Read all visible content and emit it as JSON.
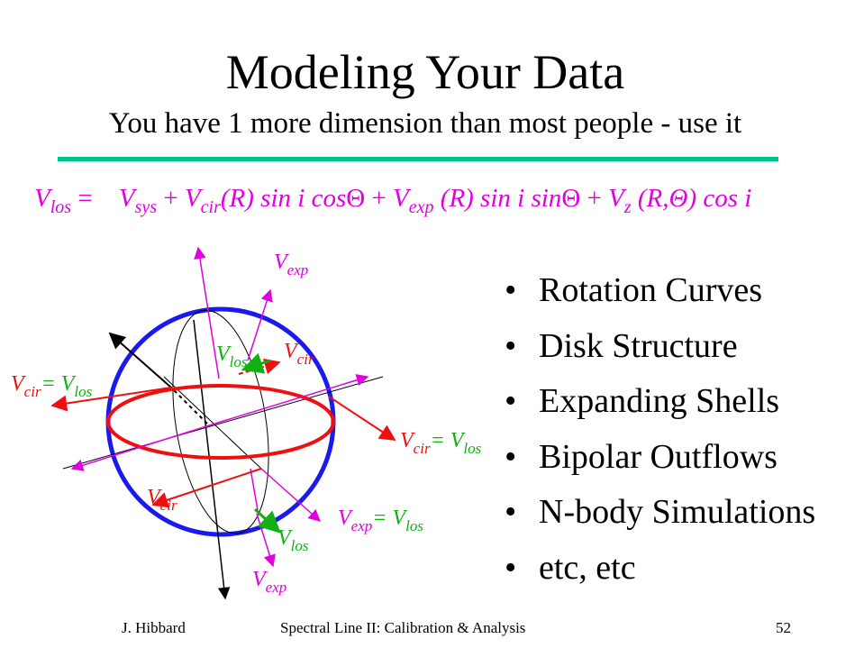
{
  "slide": {
    "title": "Modeling Your Data",
    "subtitle": "You have 1 more dimension than most people - use it"
  },
  "colors": {
    "rule": "#00c48c",
    "equation": "#e000e0",
    "sphere": "#1a1aee",
    "ring": "#ee1010",
    "vlos": "#10b010",
    "vexp": "#e000e0",
    "axis": "#000000"
  },
  "equation": {
    "lhs": "V",
    "lhs_sub": "los",
    "eq": "=",
    "t1": "V",
    "t1_sub": "sys",
    "plus1": "+",
    "t2": "V",
    "t2_sub": "cir",
    "t2_rest": "(R) sin i cos",
    "theta1": "Θ",
    "plus2": "+",
    "t3": "V",
    "t3_sub": "exp",
    "t3_rest": "(R) sin i sin",
    "theta2": "Θ",
    "plus3": "+",
    "t4": "V",
    "t4_sub": "z",
    "t4_rest": "(R,Θ) cos i"
  },
  "diagram_labels": {
    "vexp_top": "V",
    "vexp_top_sub": "exp",
    "vlos_top": "V",
    "vlos_top_sub": "los",
    "vcir_top": "V",
    "vcir_top_sub": "cir",
    "left_vcir": "V",
    "left_vcir_sub": "cir",
    "left_eq": "= V",
    "left_vlos_sub": "los",
    "right_vcir": "V",
    "right_vcir_sub": "cir",
    "right_eq": "= V",
    "right_vlos_sub": "los",
    "vcir_bottom": "V",
    "vcir_bottom_sub": "cir",
    "vexp_right": "V",
    "vexp_right_sub": "exp",
    "vexp_right_eq": "= V",
    "vexp_right_los_sub": "los",
    "vlos_bottom": "V",
    "vlos_bottom_sub": "los",
    "vexp_bottom": "V",
    "vexp_bottom_sub": "exp"
  },
  "bullets": {
    "marker": "•",
    "items": [
      "Rotation Curves",
      "Disk Structure",
      "Expanding Shells",
      "Bipolar Outflows",
      "N-body Simulations",
      "etc, etc"
    ]
  },
  "footer": {
    "author": "J. Hibbard",
    "center": "Spectral Line II: Calibration & Analysis",
    "page": "52"
  }
}
